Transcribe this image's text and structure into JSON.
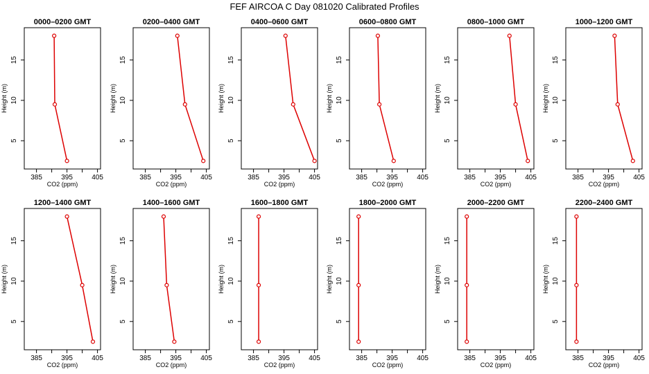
{
  "chart_data": {
    "type": "line",
    "title": "FEF AIRCOA C  Day 081020  Calibrated Profiles",
    "xlabel": "CO2 (ppm)",
    "ylabel": "Height (m)",
    "xlim": [
      381,
      406
    ],
    "ylim": [
      1.5,
      19
    ],
    "xticks": [
      385,
      395,
      405
    ],
    "xminor": [
      390,
      400
    ],
    "yticks": [
      5,
      10,
      15
    ],
    "heights": [
      2.5,
      9.5,
      18
    ],
    "line_color": "#dd0000",
    "panels": [
      {
        "title": "0000–0200 GMT",
        "co2": [
          395.0,
          391.0,
          390.8
        ]
      },
      {
        "title": "0200–0400 GMT",
        "co2": [
          404.0,
          398.0,
          395.5
        ]
      },
      {
        "title": "0400–0600 GMT",
        "co2": [
          405.0,
          398.0,
          395.5
        ]
      },
      {
        "title": "0600–0800 GMT",
        "co2": [
          395.5,
          390.8,
          390.3
        ]
      },
      {
        "title": "0800–1000 GMT",
        "co2": [
          404.0,
          400.0,
          398.0
        ]
      },
      {
        "title": "1000–1200 GMT",
        "co2": [
          403.0,
          398.0,
          397.0
        ]
      },
      {
        "title": "1200–1400 GMT",
        "co2": [
          403.5,
          400.0,
          395.0
        ]
      },
      {
        "title": "1400–1600 GMT",
        "co2": [
          394.5,
          392.0,
          391.0
        ]
      },
      {
        "title": "1600–1800 GMT",
        "co2": [
          386.7,
          386.7,
          386.7
        ]
      },
      {
        "title": "1800–2000 GMT",
        "co2": [
          384.0,
          384.0,
          384.0
        ]
      },
      {
        "title": "2000–2200 GMT",
        "co2": [
          384.0,
          384.0,
          384.0
        ]
      },
      {
        "title": "2200–2400 GMT",
        "co2": [
          384.5,
          384.5,
          384.5
        ]
      }
    ]
  }
}
